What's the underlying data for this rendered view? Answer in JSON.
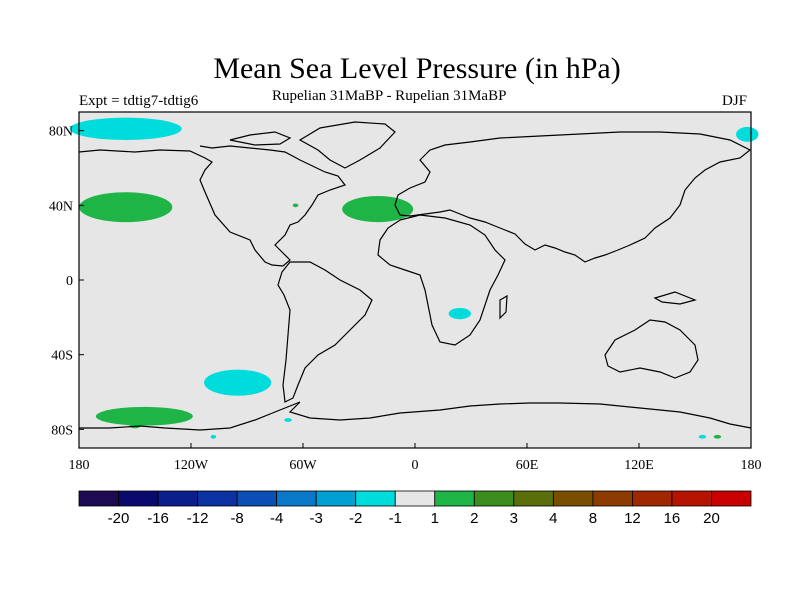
{
  "title": "Mean Sea Level Pressure (in hPa)",
  "experiment": "Expt = tdtig7-tdtig6",
  "subtitle": "Rupelian  31MaBP - Rupelian  31MaBP",
  "season": "DJF",
  "chart_data": {
    "type": "map",
    "title": "Mean Sea Level Pressure (in hPa)",
    "projection": "cylindrical-equidistant",
    "lon_range": [
      -180,
      180
    ],
    "lat_range": [
      -90,
      90
    ],
    "x_ticks": [
      {
        "lon": -180,
        "label": "180"
      },
      {
        "lon": -120,
        "label": "120W"
      },
      {
        "lon": -60,
        "label": "60W"
      },
      {
        "lon": 0,
        "label": "0"
      },
      {
        "lon": 60,
        "label": "60E"
      },
      {
        "lon": 120,
        "label": "120E"
      },
      {
        "lon": 180,
        "label": "180"
      }
    ],
    "y_ticks": [
      {
        "lat": 80,
        "label": "80N"
      },
      {
        "lat": 40,
        "label": "40N"
      },
      {
        "lat": 0,
        "label": "0"
      },
      {
        "lat": -40,
        "label": "40S"
      },
      {
        "lat": -80,
        "label": "80S"
      }
    ],
    "background_color": "#e6e6e6",
    "anomaly_regions": [
      {
        "name": "north-pacific-arctic-negative",
        "value": "-2 to -1",
        "color": "#00dcdc",
        "center": [
          -155,
          81
        ],
        "radius": [
          30,
          6
        ]
      },
      {
        "name": "arctic-east-negative",
        "value": "-2 to -1",
        "color": "#00dcdc",
        "center": [
          178,
          78
        ],
        "radius": [
          6,
          4
        ]
      },
      {
        "name": "north-pacific-positive",
        "value": "1 to 2",
        "color": "#1eb446",
        "center": [
          -155,
          39
        ],
        "radius": [
          25,
          8
        ]
      },
      {
        "name": "north-atlantic-positive",
        "value": "1 to 2",
        "color": "#1eb446",
        "center": [
          -20,
          38
        ],
        "radius": [
          19,
          7
        ]
      },
      {
        "name": "west-atlantic-small-positive",
        "value": "1 to 2",
        "color": "#1eb446",
        "center": [
          -64,
          40
        ],
        "radius": [
          1.5,
          1
        ]
      },
      {
        "name": "south-africa-negative",
        "value": "-2 to -1",
        "color": "#00dcdc",
        "center": [
          24,
          -18
        ],
        "radius": [
          6,
          3
        ]
      },
      {
        "name": "south-pacific-negative",
        "value": "-2 to -1",
        "color": "#00dcdc",
        "center": [
          -95,
          -55
        ],
        "radius": [
          18,
          7
        ]
      },
      {
        "name": "southern-ocean-positive",
        "value": "1 to 2",
        "color": "#1eb446",
        "center": [
          -145,
          -73
        ],
        "radius": [
          26,
          5
        ]
      },
      {
        "name": "drake-passage-negative",
        "value": "-2 to -1",
        "color": "#00dcdc",
        "center": [
          -68,
          -75
        ],
        "radius": [
          2,
          1
        ]
      },
      {
        "name": "antarctic-small-positive",
        "value": "1 to 2",
        "color": "#1eb446",
        "center": [
          -150,
          -78
        ],
        "radius": [
          3,
          1.5
        ]
      },
      {
        "name": "antarctic-small-negative",
        "value": "-2 to -1",
        "color": "#00dcdc",
        "center": [
          -108,
          -84
        ],
        "radius": [
          1.5,
          1
        ]
      },
      {
        "name": "ross-sea-negative",
        "value": "-2 to -1",
        "color": "#00dcdc",
        "center": [
          154,
          -84
        ],
        "radius": [
          2,
          1
        ]
      },
      {
        "name": "ross-sea-positive",
        "value": "1 to 2",
        "color": "#1eb446",
        "center": [
          162,
          -84
        ],
        "radius": [
          2,
          1
        ]
      }
    ],
    "colorbar": {
      "colors": [
        "#1e0a50",
        "#0a0a6e",
        "#0a1e8c",
        "#0a32a0",
        "#0a50b4",
        "#0a78c8",
        "#00a0d2",
        "#00dcdc",
        "#e6e6e6",
        "#1eb446",
        "#3c8c1e",
        "#5a6e0a",
        "#784e00",
        "#8c3c00",
        "#a02800",
        "#b41400",
        "#c80000"
      ],
      "labels": [
        "-20",
        "-16",
        "-12",
        "-8",
        "-4",
        "-3",
        "-2",
        "-1",
        "1",
        "2",
        "3",
        "4",
        "8",
        "12",
        "16",
        "20"
      ]
    }
  }
}
